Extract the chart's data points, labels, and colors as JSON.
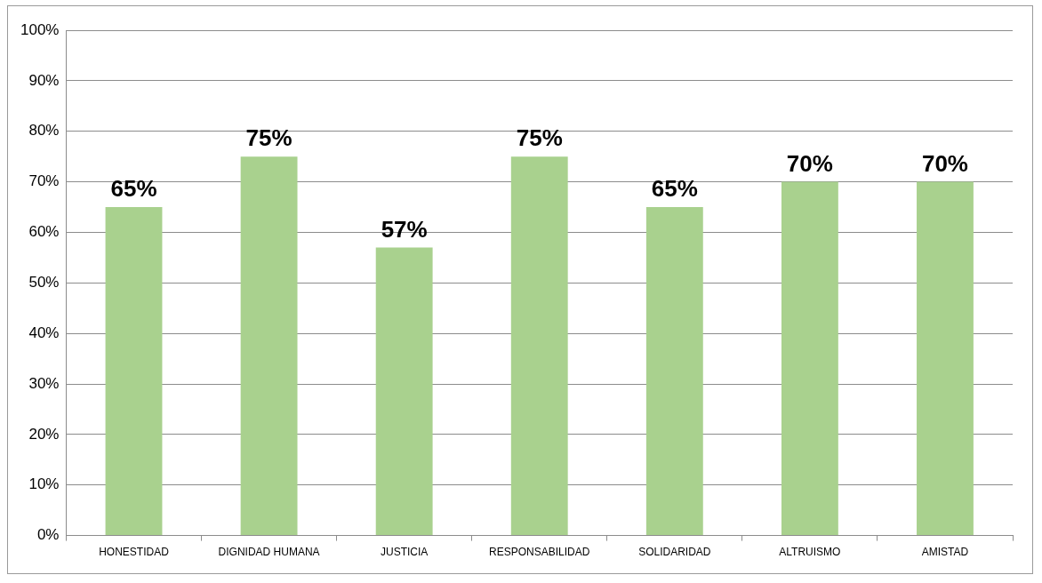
{
  "chart_data": {
    "type": "bar",
    "categories": [
      "HONESTIDAD",
      "DIGNIDAD HUMANA",
      "JUSTICIA",
      "RESPONSABILIDAD",
      "SOLIDARIDAD",
      "ALTRUISMO",
      "AMISTAD"
    ],
    "values": [
      65,
      75,
      57,
      75,
      65,
      70,
      70
    ],
    "value_labels": [
      "65%",
      "75%",
      "57%",
      "75%",
      "65%",
      "70%",
      "70%"
    ],
    "color": "#a9d18e",
    "ylim": [
      0,
      100
    ],
    "yticks": [
      {
        "value": 0,
        "label": "0%"
      },
      {
        "value": 10,
        "label": "10%"
      },
      {
        "value": 20,
        "label": "20%"
      },
      {
        "value": 30,
        "label": "30%"
      },
      {
        "value": 40,
        "label": "40%"
      },
      {
        "value": 50,
        "label": "50%"
      },
      {
        "value": 60,
        "label": "60%"
      },
      {
        "value": 70,
        "label": "70%"
      },
      {
        "value": 80,
        "label": "80%"
      },
      {
        "value": 90,
        "label": "90%"
      },
      {
        "value": 100,
        "label": "100%"
      }
    ],
    "grid": "y"
  }
}
